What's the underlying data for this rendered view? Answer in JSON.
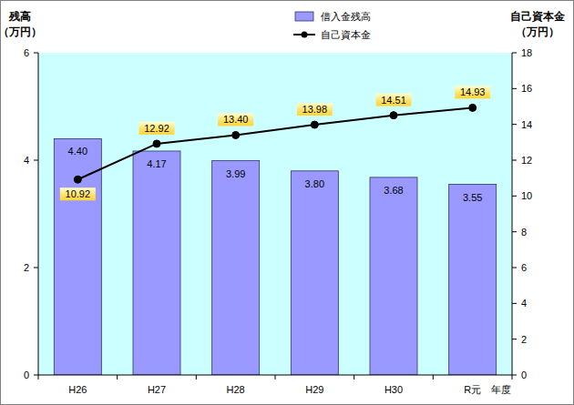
{
  "chart_data": {
    "type": "bar",
    "categories": [
      "H26",
      "H27",
      "H28",
      "H29",
      "H30",
      "R元"
    ],
    "x_label": "年度",
    "y_label": "残高\n（万円）",
    "y2_label": "自己資本金\n（万円）",
    "ylim": [
      0,
      6
    ],
    "yticks": [
      0,
      2,
      4,
      6
    ],
    "y2lim": [
      0,
      18
    ],
    "y2ticks": [
      0,
      2,
      4,
      6,
      8,
      10,
      12,
      14,
      16,
      18
    ],
    "grid": false,
    "legend": "top",
    "data_labels": true,
    "series": [
      {
        "name": "借入金残高",
        "type": "bar",
        "color": "#9999ff",
        "values": [
          4.4,
          4.17,
          3.99,
          3.8,
          3.68,
          3.55
        ],
        "value_labels": [
          "4.40",
          "4.17",
          "3.99",
          "3.80",
          "3.68",
          "3.55"
        ]
      },
      {
        "name": "自己資本金",
        "type": "line",
        "axis": "y2",
        "color": "#000000",
        "marker": "circle",
        "values": [
          10.92,
          12.92,
          13.4,
          13.98,
          14.51,
          14.93
        ],
        "value_labels": [
          "10.92",
          "12.92",
          "13.40",
          "13.98",
          "14.51",
          "14.93"
        ]
      }
    ]
  }
}
